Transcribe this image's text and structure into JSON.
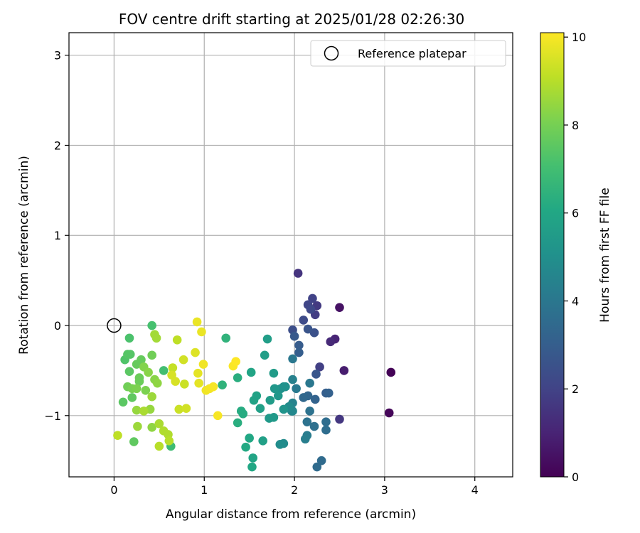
{
  "chart_data": {
    "type": "scatter",
    "title": "FOV centre drift starting at 2025/01/28 02:26:30",
    "xlabel": "Angular distance from reference (arcmin)",
    "ylabel": "Rotation from reference (arcmin)",
    "xlim": [
      -0.5,
      4.42
    ],
    "ylim": [
      -1.68,
      3.25
    ],
    "xticks": [
      0,
      1,
      2,
      3,
      4
    ],
    "yticks": [
      -1,
      0,
      1,
      2,
      3
    ],
    "xtick_labels": [
      "0",
      "1",
      "2",
      "3",
      "4"
    ],
    "ytick_labels": [
      "−1",
      "0",
      "1",
      "2",
      "3"
    ],
    "grid": true,
    "legend": {
      "placement": "top-right",
      "entries": [
        "Reference platepar"
      ]
    },
    "reference_point": {
      "x": 0,
      "y": 0
    },
    "colorbar": {
      "label": "Hours from first FF file",
      "colormap": "viridis",
      "range": [
        0,
        10.1
      ],
      "ticks": [
        0,
        2,
        4,
        6,
        8,
        10
      ],
      "tick_labels": [
        "0",
        "2",
        "4",
        "6",
        "8",
        "10"
      ]
    },
    "points": [
      [
        3.07,
        -0.52,
        0.05
      ],
      [
        3.05,
        -0.97,
        0.15
      ],
      [
        2.5,
        0.2,
        0.5
      ],
      [
        2.55,
        -0.5,
        0.8
      ],
      [
        2.45,
        -0.15,
        1.0
      ],
      [
        2.4,
        -0.18,
        1.2
      ],
      [
        2.04,
        0.58,
        1.5
      ],
      [
        2.5,
        -1.04,
        1.6
      ],
      [
        2.25,
        0.22,
        1.7
      ],
      [
        2.23,
        0.12,
        1.8
      ],
      [
        2.28,
        -0.46,
        1.9
      ],
      [
        2.2,
        0.3,
        2.0
      ],
      [
        2.15,
        0.23,
        2.1
      ],
      [
        2.18,
        0.18,
        2.2
      ],
      [
        2.1,
        0.06,
        2.3
      ],
      [
        1.98,
        -0.05,
        2.4
      ],
      [
        2.22,
        -0.08,
        2.5
      ],
      [
        2.15,
        -0.04,
        2.6
      ],
      [
        2.24,
        -0.54,
        2.7
      ],
      [
        2.0,
        -0.12,
        2.8
      ],
      [
        2.05,
        -0.22,
        2.9
      ],
      [
        2.05,
        -0.3,
        3.0
      ],
      [
        2.35,
        -0.75,
        3.0
      ],
      [
        2.38,
        -0.75,
        3.1
      ],
      [
        2.23,
        -0.82,
        3.2
      ],
      [
        2.15,
        -0.78,
        3.3
      ],
      [
        2.1,
        -0.8,
        3.4
      ],
      [
        2.3,
        -1.5,
        3.5
      ],
      [
        2.25,
        -1.57,
        3.5
      ],
      [
        2.35,
        -1.07,
        3.6
      ],
      [
        2.35,
        -1.16,
        3.6
      ],
      [
        2.22,
        -1.12,
        3.7
      ],
      [
        2.17,
        -0.95,
        3.8
      ],
      [
        2.14,
        -1.07,
        3.8
      ],
      [
        1.98,
        -0.37,
        4.0
      ],
      [
        2.17,
        -0.64,
        4.0
      ],
      [
        2.02,
        -0.7,
        4.1
      ],
      [
        2.14,
        -1.22,
        4.2
      ],
      [
        2.12,
        -1.26,
        4.3
      ],
      [
        1.98,
        -0.6,
        4.4
      ],
      [
        1.98,
        -0.86,
        4.5
      ],
      [
        1.97,
        -0.95,
        4.6
      ],
      [
        1.98,
        -0.95,
        4.7
      ],
      [
        1.94,
        -0.9,
        4.8
      ],
      [
        1.88,
        -1.31,
        4.8
      ],
      [
        1.84,
        -1.32,
        4.9
      ],
      [
        1.9,
        -0.68,
        5.0
      ],
      [
        1.88,
        -0.68,
        5.1
      ],
      [
        1.85,
        -0.7,
        5.1
      ],
      [
        1.88,
        -0.93,
        5.2
      ],
      [
        1.78,
        -0.7,
        5.3
      ],
      [
        1.82,
        -0.78,
        5.3
      ],
      [
        1.72,
        -1.03,
        5.4
      ],
      [
        1.77,
        -1.02,
        5.4
      ],
      [
        1.77,
        -0.53,
        5.5
      ],
      [
        1.73,
        -0.83,
        5.5
      ],
      [
        1.7,
        -0.15,
        5.6
      ],
      [
        1.67,
        -0.33,
        5.6
      ],
      [
        1.62,
        -0.92,
        5.7
      ],
      [
        1.65,
        -1.28,
        5.7
      ],
      [
        1.58,
        -0.78,
        5.8
      ],
      [
        1.55,
        -0.83,
        5.8
      ],
      [
        1.52,
        -0.52,
        5.9
      ],
      [
        1.54,
        -1.47,
        5.9
      ],
      [
        1.53,
        -1.57,
        6.0
      ],
      [
        1.5,
        -1.25,
        6.0
      ],
      [
        1.46,
        -1.35,
        6.1
      ],
      [
        1.41,
        -0.95,
        6.2
      ],
      [
        1.43,
        -0.98,
        6.2
      ],
      [
        1.37,
        -0.58,
        6.3
      ],
      [
        1.37,
        -1.08,
        6.3
      ],
      [
        1.24,
        -0.14,
        6.5
      ],
      [
        1.2,
        -0.66,
        6.5
      ],
      [
        0.63,
        -1.34,
        6.9
      ],
      [
        0.55,
        -0.5,
        7.0
      ],
      [
        0.42,
        0.0,
        7.1
      ],
      [
        0.17,
        -0.14,
        7.2
      ],
      [
        0.12,
        -0.38,
        7.3
      ],
      [
        0.15,
        -0.32,
        7.4
      ],
      [
        0.18,
        -0.32,
        7.4
      ],
      [
        0.17,
        -0.51,
        7.5
      ],
      [
        0.1,
        -0.85,
        7.5
      ],
      [
        0.22,
        -1.29,
        7.6
      ],
      [
        0.2,
        -0.8,
        7.6
      ],
      [
        0.3,
        -0.38,
        7.7
      ],
      [
        0.25,
        -0.43,
        7.7
      ],
      [
        0.28,
        -0.58,
        7.8
      ],
      [
        0.28,
        -0.62,
        7.8
      ],
      [
        0.42,
        -0.33,
        7.9
      ],
      [
        0.15,
        -0.68,
        7.9
      ],
      [
        0.2,
        -0.7,
        8.0
      ],
      [
        0.25,
        -0.7,
        8.1
      ],
      [
        0.35,
        -0.72,
        8.1
      ],
      [
        0.33,
        -0.46,
        8.2
      ],
      [
        0.38,
        -0.52,
        8.3
      ],
      [
        0.45,
        -0.6,
        8.3
      ],
      [
        0.48,
        -0.64,
        8.4
      ],
      [
        0.42,
        -1.13,
        8.4
      ],
      [
        0.4,
        -0.93,
        8.5
      ],
      [
        0.25,
        -0.94,
        8.5
      ],
      [
        0.26,
        -1.12,
        8.6
      ],
      [
        0.42,
        -0.79,
        8.6
      ],
      [
        0.45,
        -0.1,
        8.7
      ],
      [
        0.47,
        -0.14,
        8.7
      ],
      [
        0.33,
        -0.95,
        8.8
      ],
      [
        0.5,
        -1.09,
        8.8
      ],
      [
        0.55,
        -1.17,
        8.9
      ],
      [
        0.6,
        -1.21,
        8.9
      ],
      [
        0.61,
        -1.28,
        9.0
      ],
      [
        0.5,
        -1.34,
        9.0
      ],
      [
        0.04,
        -1.22,
        9.1
      ],
      [
        0.7,
        -0.16,
        9.1
      ],
      [
        0.65,
        -0.47,
        9.2
      ],
      [
        0.78,
        -0.65,
        9.3
      ],
      [
        0.72,
        -0.93,
        9.3
      ],
      [
        0.8,
        -0.92,
        9.4
      ],
      [
        0.77,
        -0.38,
        9.4
      ],
      [
        0.64,
        -0.55,
        9.5
      ],
      [
        0.68,
        -0.62,
        9.5
      ],
      [
        0.9,
        -0.3,
        9.6
      ],
      [
        0.93,
        -0.53,
        9.7
      ],
      [
        0.94,
        -0.64,
        9.7
      ],
      [
        0.92,
        0.04,
        9.8
      ],
      [
        0.97,
        -0.07,
        9.8
      ],
      [
        0.99,
        -0.43,
        9.9
      ],
      [
        1.02,
        -0.72,
        9.9
      ],
      [
        1.06,
        -0.7,
        9.95
      ],
      [
        1.1,
        -0.68,
        10.0
      ],
      [
        1.15,
        -1.0,
        10.0
      ],
      [
        1.32,
        -0.45,
        10.05
      ],
      [
        1.35,
        -0.4,
        10.1
      ]
    ]
  }
}
